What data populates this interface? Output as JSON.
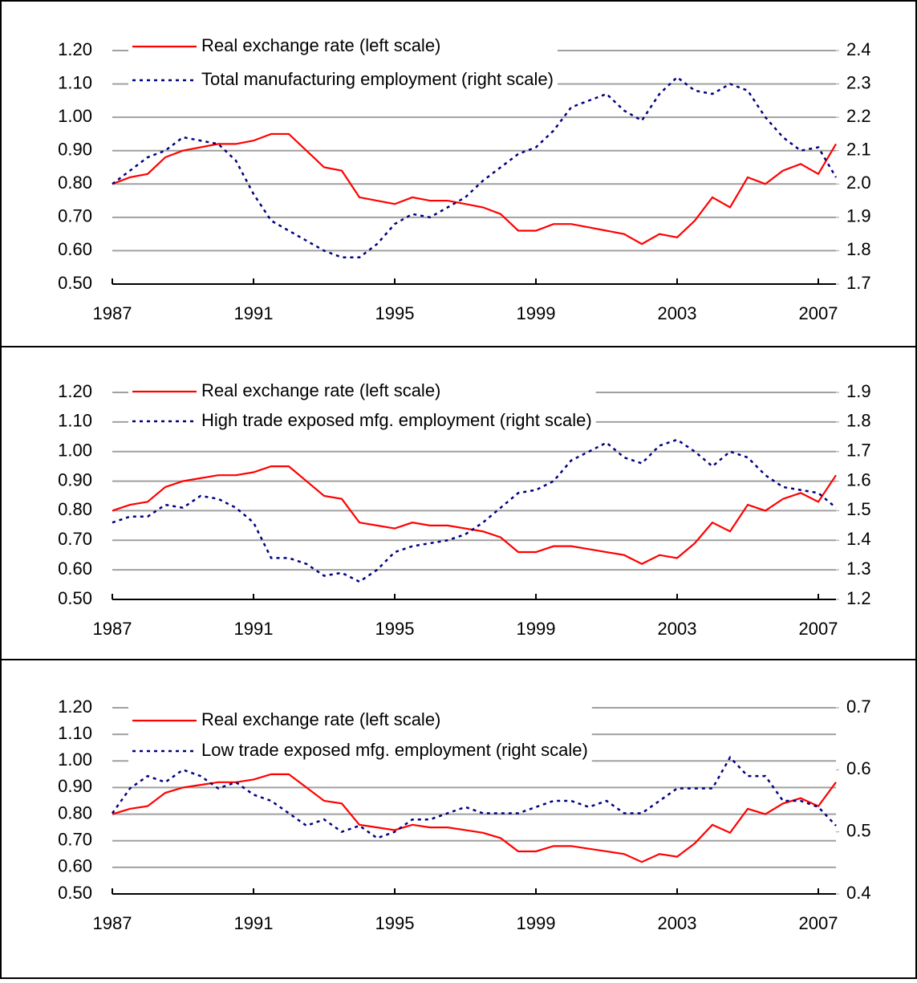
{
  "chart_data": [
    {
      "type": "line",
      "x": [
        1987,
        1987.5,
        1988,
        1988.5,
        1989,
        1989.5,
        1990,
        1990.5,
        1991,
        1991.5,
        1992,
        1992.5,
        1993,
        1993.5,
        1994,
        1994.5,
        1995,
        1995.5,
        1996,
        1996.5,
        1997,
        1997.5,
        1998,
        1998.5,
        1999,
        1999.5,
        2000,
        2000.5,
        2001,
        2001.5,
        2002,
        2002.5,
        2003,
        2003.5,
        2004,
        2004.5,
        2005,
        2005.5,
        2006,
        2006.5,
        2007,
        2007.5
      ],
      "series": [
        {
          "name": "Real exchange rate (left scale)",
          "color": "#ff0000",
          "style": "solid",
          "values": [
            0.8,
            0.82,
            0.83,
            0.88,
            0.9,
            0.91,
            0.92,
            0.92,
            0.93,
            0.95,
            0.95,
            0.9,
            0.85,
            0.84,
            0.76,
            0.75,
            0.74,
            0.76,
            0.75,
            0.75,
            0.74,
            0.73,
            0.71,
            0.66,
            0.66,
            0.68,
            0.68,
            0.67,
            0.66,
            0.65,
            0.62,
            0.65,
            0.64,
            0.69,
            0.76,
            0.73,
            0.82,
            0.8,
            0.84,
            0.86,
            0.83,
            0.92
          ]
        },
        {
          "name": "Total manufacturing employment (right scale)",
          "color": "#000080",
          "style": "dotted",
          "axis": "y2",
          "values": [
            2.0,
            2.04,
            2.08,
            2.1,
            2.14,
            2.13,
            2.12,
            2.07,
            1.97,
            1.89,
            1.86,
            1.83,
            1.8,
            1.78,
            1.78,
            1.82,
            1.88,
            1.91,
            1.9,
            1.93,
            1.96,
            2.01,
            2.05,
            2.09,
            2.11,
            2.16,
            2.23,
            2.25,
            2.27,
            2.22,
            2.19,
            2.27,
            2.32,
            2.28,
            2.27,
            2.3,
            2.28,
            2.2,
            2.14,
            2.1,
            2.11,
            2.02
          ]
        }
      ],
      "xlim": [
        1987,
        2007.5
      ],
      "xticks": [
        1987,
        1991,
        1995,
        1999,
        2003,
        2007
      ],
      "ylim": [
        0.5,
        1.2
      ],
      "yticks": [
        {
          "value": 0.5,
          "label": "0.50"
        },
        {
          "value": 0.6,
          "label": "0.60"
        },
        {
          "value": 0.7,
          "label": "0.70"
        },
        {
          "value": 0.8,
          "label": "0.80"
        },
        {
          "value": 0.9,
          "label": "0.90"
        },
        {
          "value": 1.0,
          "label": "1.00"
        },
        {
          "value": 1.1,
          "label": "1.10"
        },
        {
          "value": 1.2,
          "label": "1.20"
        }
      ],
      "y2lim": [
        1.7,
        2.4
      ],
      "y2ticks": [
        1.7,
        1.8,
        1.9,
        {
          "value": 2.0,
          "label": "2.0"
        },
        2.1,
        2.2,
        2.3,
        2.4
      ],
      "grid": true,
      "legend": "top-left"
    },
    {
      "type": "line",
      "x": [
        1987,
        1987.5,
        1988,
        1988.5,
        1989,
        1989.5,
        1990,
        1990.5,
        1991,
        1991.5,
        1992,
        1992.5,
        1993,
        1993.5,
        1994,
        1994.5,
        1995,
        1995.5,
        1996,
        1996.5,
        1997,
        1997.5,
        1998,
        1998.5,
        1999,
        1999.5,
        2000,
        2000.5,
        2001,
        2001.5,
        2002,
        2002.5,
        2003,
        2003.5,
        2004,
        2004.5,
        2005,
        2005.5,
        2006,
        2006.5,
        2007,
        2007.5
      ],
      "series": [
        {
          "name": "Real exchange rate (left scale)",
          "color": "#ff0000",
          "style": "solid",
          "values": [
            0.8,
            0.82,
            0.83,
            0.88,
            0.9,
            0.91,
            0.92,
            0.92,
            0.93,
            0.95,
            0.95,
            0.9,
            0.85,
            0.84,
            0.76,
            0.75,
            0.74,
            0.76,
            0.75,
            0.75,
            0.74,
            0.73,
            0.71,
            0.66,
            0.66,
            0.68,
            0.68,
            0.67,
            0.66,
            0.65,
            0.62,
            0.65,
            0.64,
            0.69,
            0.76,
            0.73,
            0.82,
            0.8,
            0.84,
            0.86,
            0.83,
            0.92
          ]
        },
        {
          "name": "High trade exposed mfg. employment (right scale)",
          "color": "#000080",
          "style": "dotted",
          "axis": "y2",
          "values": [
            1.46,
            1.48,
            1.48,
            1.52,
            1.51,
            1.55,
            1.54,
            1.51,
            1.46,
            1.34,
            1.34,
            1.32,
            1.28,
            1.29,
            1.26,
            1.3,
            1.36,
            1.38,
            1.39,
            1.4,
            1.42,
            1.46,
            1.51,
            1.56,
            1.57,
            1.6,
            1.67,
            1.7,
            1.73,
            1.68,
            1.66,
            1.72,
            1.74,
            1.7,
            1.65,
            1.7,
            1.68,
            1.62,
            1.58,
            1.57,
            1.56,
            1.51
          ]
        }
      ],
      "xlim": [
        1987,
        2007.5
      ],
      "xticks": [
        1987,
        1991,
        1995,
        1999,
        2003,
        2007
      ],
      "ylim": [
        0.5,
        1.2
      ],
      "yticks": [
        {
          "value": 0.5,
          "label": "0.50"
        },
        {
          "value": 0.6,
          "label": "0.60"
        },
        {
          "value": 0.7,
          "label": "0.70"
        },
        {
          "value": 0.8,
          "label": "0.80"
        },
        {
          "value": 0.9,
          "label": "0.90"
        },
        {
          "value": 1.0,
          "label": "1.00"
        },
        {
          "value": 1.1,
          "label": "1.10"
        },
        {
          "value": 1.2,
          "label": "1.20"
        }
      ],
      "y2lim": [
        1.2,
        1.9
      ],
      "y2ticks": [
        1.2,
        1.3,
        1.4,
        1.5,
        1.6,
        1.7,
        1.8,
        1.9
      ],
      "grid": true,
      "legend": "top-left"
    },
    {
      "type": "line",
      "x": [
        1987,
        1987.5,
        1988,
        1988.5,
        1989,
        1989.5,
        1990,
        1990.5,
        1991,
        1991.5,
        1992,
        1992.5,
        1993,
        1993.5,
        1994,
        1994.5,
        1995,
        1995.5,
        1996,
        1996.5,
        1997,
        1997.5,
        1998,
        1998.5,
        1999,
        1999.5,
        2000,
        2000.5,
        2001,
        2001.5,
        2002,
        2002.5,
        2003,
        2003.5,
        2004,
        2004.5,
        2005,
        2005.5,
        2006,
        2006.5,
        2007,
        2007.5
      ],
      "series": [
        {
          "name": "Real exchange rate (left scale)",
          "color": "#ff0000",
          "style": "solid",
          "values": [
            0.8,
            0.82,
            0.83,
            0.88,
            0.9,
            0.91,
            0.92,
            0.92,
            0.93,
            0.95,
            0.95,
            0.9,
            0.85,
            0.84,
            0.76,
            0.75,
            0.74,
            0.76,
            0.75,
            0.75,
            0.74,
            0.73,
            0.71,
            0.66,
            0.66,
            0.68,
            0.68,
            0.67,
            0.66,
            0.65,
            0.62,
            0.65,
            0.64,
            0.69,
            0.76,
            0.73,
            0.82,
            0.8,
            0.84,
            0.86,
            0.83,
            0.92
          ]
        },
        {
          "name": "Low trade exposed mfg. employment (right scale)",
          "color": "#000080",
          "style": "dotted",
          "axis": "y2",
          "values": [
            0.53,
            0.57,
            0.59,
            0.58,
            0.6,
            0.59,
            0.57,
            0.58,
            0.56,
            0.55,
            0.53,
            0.51,
            0.52,
            0.5,
            0.51,
            0.49,
            0.5,
            0.52,
            0.52,
            0.53,
            0.54,
            0.53,
            0.53,
            0.53,
            0.54,
            0.55,
            0.55,
            0.54,
            0.55,
            0.53,
            0.53,
            0.55,
            0.57,
            0.57,
            0.57,
            0.62,
            0.59,
            0.59,
            0.55,
            0.55,
            0.54,
            0.51
          ]
        }
      ],
      "xlim": [
        1987,
        2007.5
      ],
      "xticks": [
        1987,
        1991,
        1995,
        1999,
        2003,
        2007
      ],
      "ylim": [
        0.5,
        1.2
      ],
      "yticks": [
        {
          "value": 0.5,
          "label": "0.50"
        },
        {
          "value": 0.6,
          "label": "0.60"
        },
        {
          "value": 0.7,
          "label": "0.70"
        },
        {
          "value": 0.8,
          "label": "0.80"
        },
        {
          "value": 0.9,
          "label": "0.90"
        },
        {
          "value": 1.0,
          "label": "1.00"
        },
        {
          "value": 1.1,
          "label": "1.10"
        },
        {
          "value": 1.2,
          "label": "1.20"
        }
      ],
      "y2lim": [
        0.4,
        0.7
      ],
      "y2ticks": [
        0.4,
        0.5,
        0.6,
        0.7
      ],
      "grid": true,
      "legend": "top-left"
    }
  ]
}
